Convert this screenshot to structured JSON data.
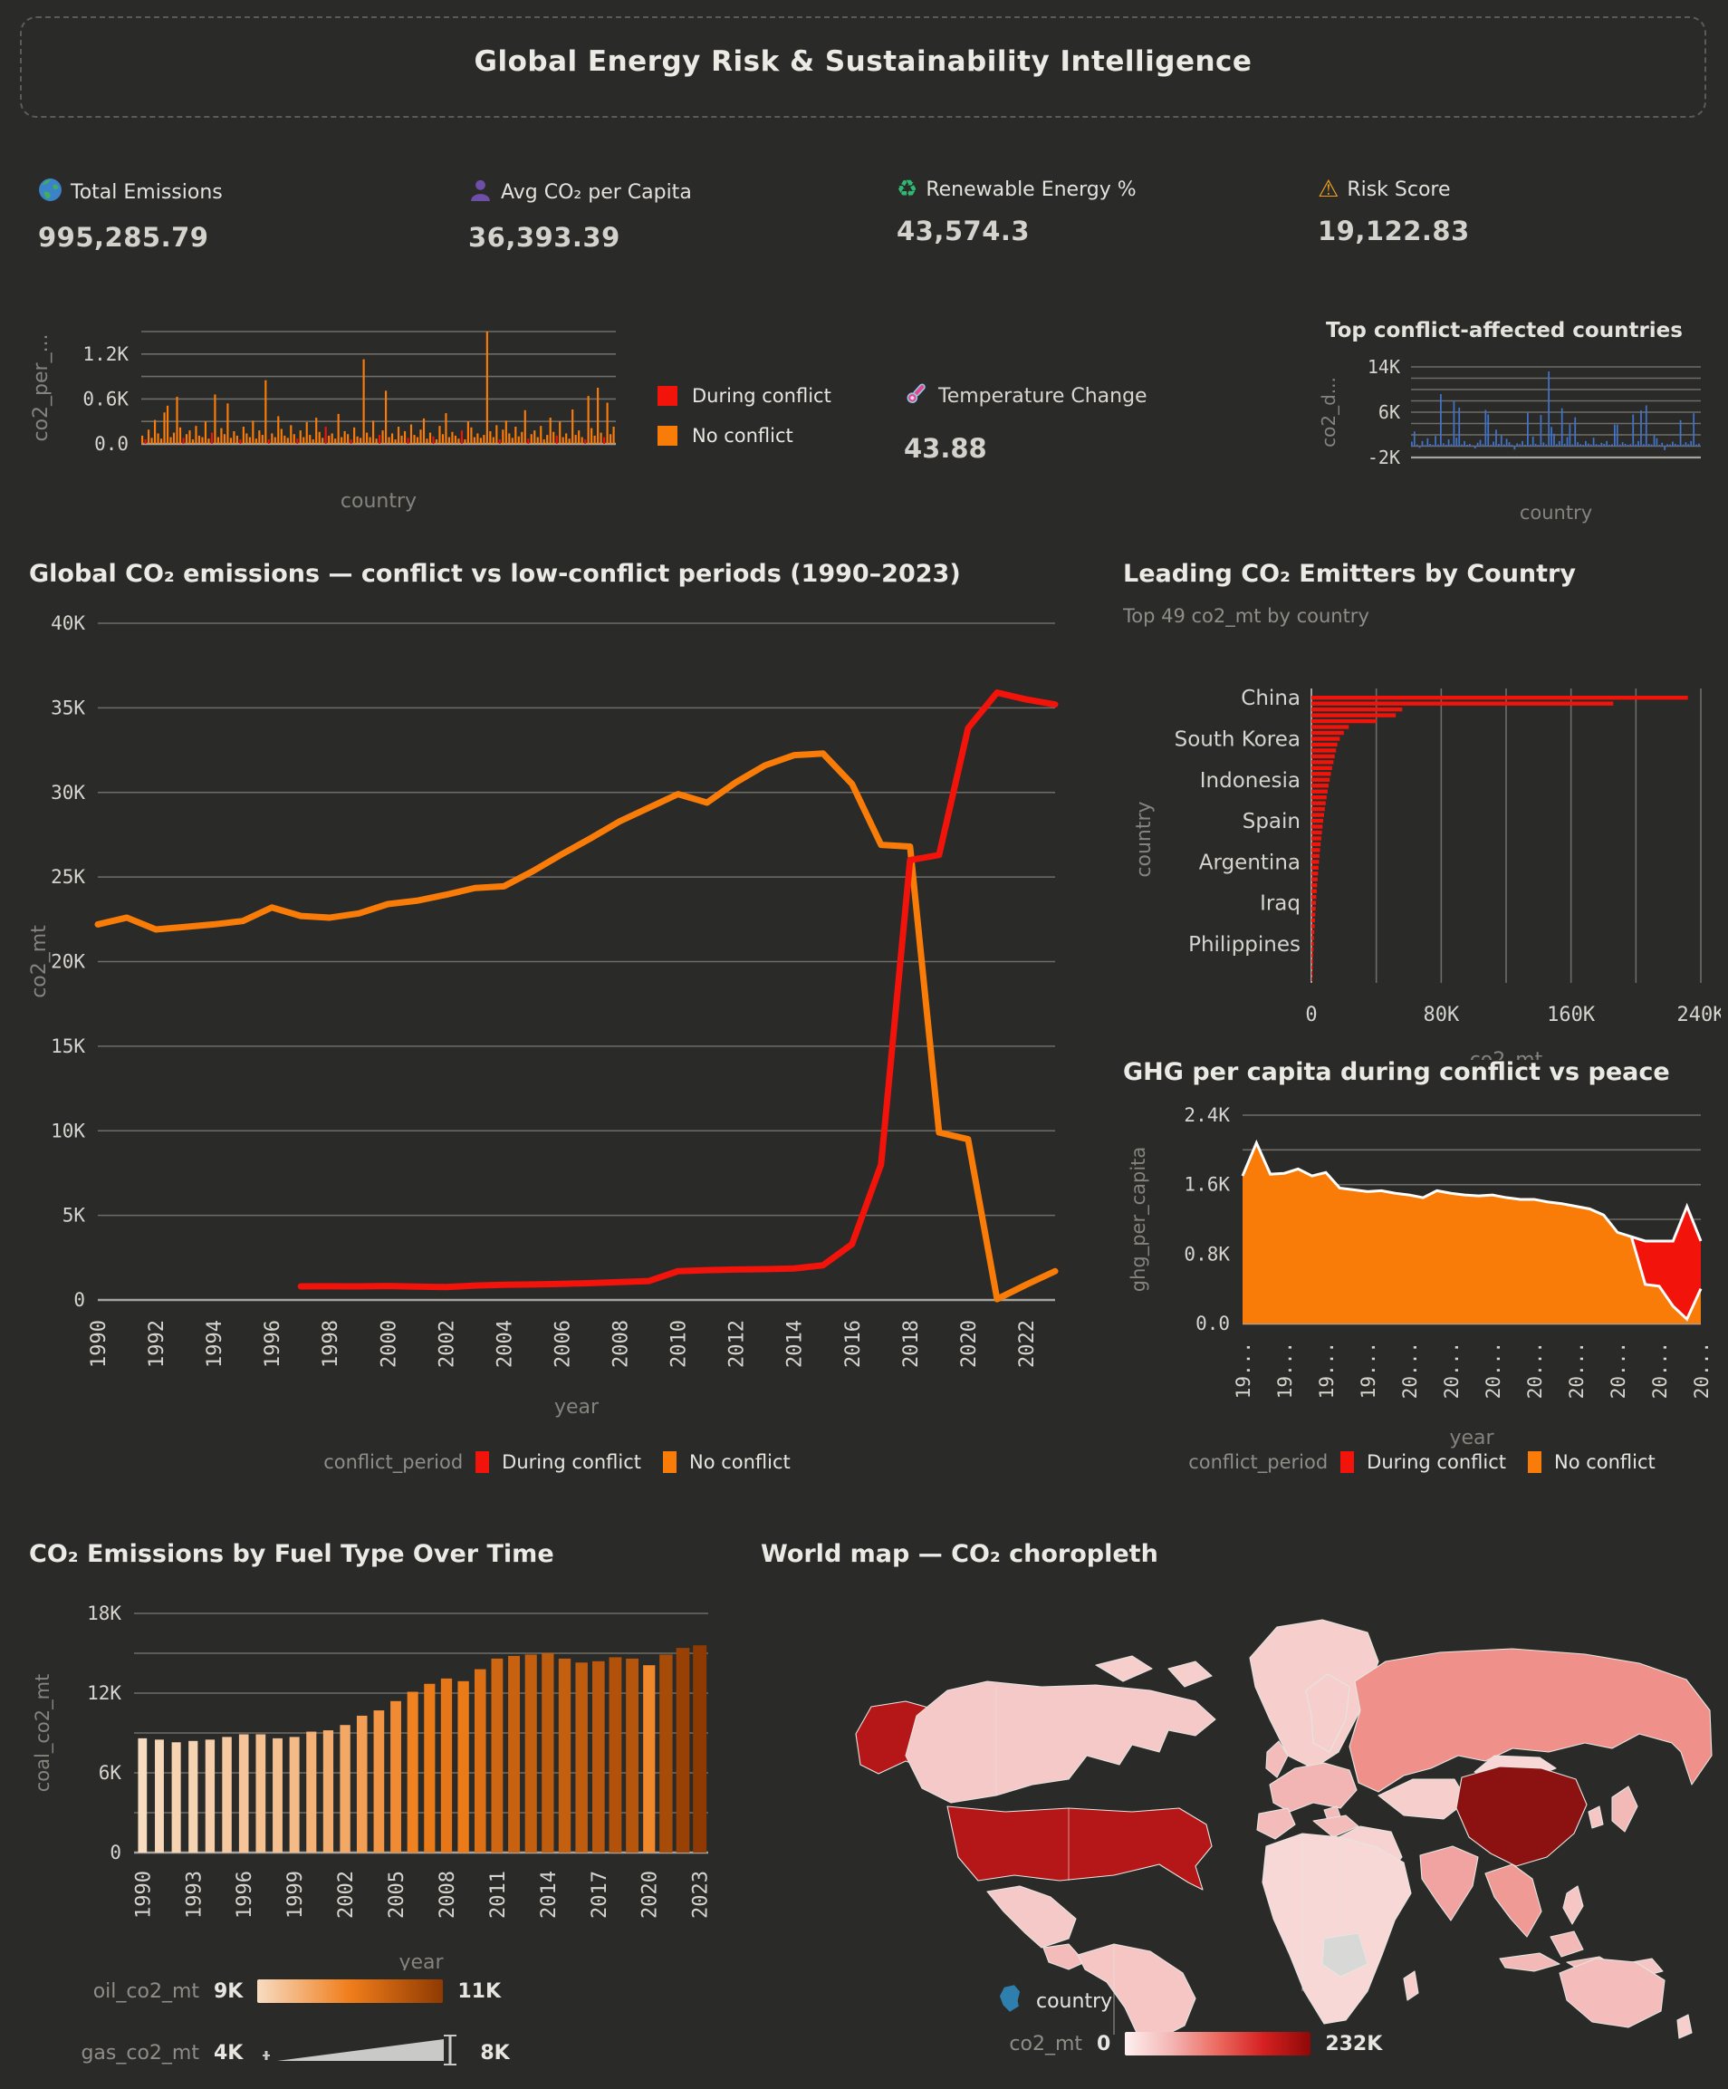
{
  "header": {
    "title": "Global Energy Risk & Sustainability Intelligence"
  },
  "kpis": [
    {
      "icon": "earth-icon",
      "label": "Total Emissions",
      "value": "995,285.79"
    },
    {
      "icon": "person-icon",
      "label": "Avg CO₂ per Capita",
      "value": "36,393.39"
    },
    {
      "icon": "recycle-icon",
      "label": "Renewable Energy %",
      "value": "43,574.3"
    },
    {
      "icon": "warning-icon",
      "label": "Risk Score",
      "value": "19,122.83"
    }
  ],
  "temperature": {
    "label": "Temperature Change",
    "value": "43.88"
  },
  "legend": {
    "series_label": "conflict_period",
    "during_label": "During conflict",
    "none_label": "No conflict",
    "during_color": "#f2130a",
    "none_color": "#f97c09"
  },
  "colors": {
    "background": "#2a2a28",
    "grid": "#6f6d67",
    "axis": "#a6a49e",
    "tick_text": "#d6d4ce",
    "axis_title": "#85837d",
    "blue_bar": "#4173c9"
  },
  "chart_data": [
    {
      "id": "country_emissions_mini",
      "type": "bar",
      "title": "",
      "xlabel": "country",
      "ylabel": "co2_per_...",
      "ylim": [
        0,
        1500
      ],
      "grid_step": 300,
      "yticks": [
        {
          "v": 0,
          "t": "0.0"
        },
        {
          "v": 600,
          "t": "0.6K"
        },
        {
          "v": 1200,
          "t": "1.2K"
        }
      ],
      "values": [
        110,
        60,
        190,
        80,
        320,
        140,
        70,
        420,
        510,
        90,
        150,
        630,
        220,
        80,
        130,
        180,
        60,
        240,
        110,
        90,
        300,
        70,
        150,
        660,
        90,
        210,
        130,
        540,
        80,
        170,
        110,
        60,
        230,
        140,
        90,
        310,
        70,
        180,
        120,
        850,
        60,
        140,
        90,
        370,
        200,
        110,
        80,
        250,
        130,
        70,
        180,
        90,
        290,
        120,
        60,
        350,
        160,
        80,
        230,
        110,
        140,
        70,
        400,
        90,
        170,
        130,
        60,
        220,
        100,
        80,
        1130,
        150,
        90,
        310,
        70,
        120,
        180,
        710,
        90,
        140,
        60,
        230,
        110,
        170,
        80,
        260,
        120,
        90,
        190,
        340,
        70,
        150,
        100,
        60,
        240,
        130,
        410,
        90,
        160,
        110,
        70,
        180,
        60,
        300,
        220,
        90,
        140,
        80,
        120,
        1500,
        170,
        90,
        250,
        60,
        190,
        310,
        140,
        80,
        230,
        100,
        160,
        450,
        70,
        130,
        180,
        90,
        240,
        60,
        120,
        350,
        160,
        110,
        300,
        90,
        140,
        70,
        460,
        120,
        180,
        90,
        60,
        640,
        210,
        110,
        750,
        150,
        90,
        550,
        130,
        230
      ],
      "red_indices": [
        1,
        13,
        22,
        31,
        40,
        49,
        58,
        66,
        75,
        84,
        92,
        101,
        113,
        122,
        131,
        140,
        146
      ]
    },
    {
      "id": "conflict_countries_mini",
      "type": "bar",
      "title": "Top conflict-affected countries",
      "xlabel": "country",
      "ylabel": "co2_d...",
      "ylim": [
        -2000,
        14000
      ],
      "grid_step": 2000,
      "yticks": [
        {
          "v": -2000,
          "t": "-2K"
        },
        {
          "v": 6000,
          "t": "6K"
        },
        {
          "v": 14000,
          "t": "14K"
        }
      ],
      "values": [
        800,
        2600,
        300,
        -300,
        900,
        200,
        1400,
        400,
        250,
        1800,
        300,
        9200,
        500,
        250,
        1200,
        350,
        7900,
        1500,
        6800,
        300,
        900,
        250,
        400,
        150,
        -400,
        600,
        1100,
        350,
        6400,
        5600,
        250,
        800,
        2900,
        400,
        1900,
        300,
        1300,
        700,
        250,
        -600,
        500,
        350,
        900,
        250,
        5900,
        300,
        1700,
        400,
        250,
        5500,
        650,
        300,
        13200,
        3400,
        2200,
        350,
        900,
        6700,
        400,
        1600,
        3900,
        300,
        5100,
        700,
        350,
        250,
        900,
        450,
        300,
        1500,
        350,
        250,
        600,
        400,
        900,
        250,
        350,
        3800,
        3800,
        300,
        700,
        400,
        250,
        350,
        5600,
        300,
        900,
        6300,
        350,
        7200,
        400,
        300,
        1900,
        1400,
        250,
        600,
        -700,
        350,
        300,
        800,
        400,
        250,
        4600,
        300,
        700,
        350,
        900,
        5800,
        300,
        450
      ]
    },
    {
      "id": "conflict_timeline",
      "type": "line",
      "title": "Global CO₂ emissions — conflict vs low-conflict periods (1990–2023)",
      "xlabel": "year",
      "ylabel": "co2_mt",
      "ylim": [
        0,
        40000
      ],
      "grid_step": 5000,
      "yticks": [
        {
          "v": 0,
          "t": "0"
        },
        {
          "v": 5000,
          "t": "5K"
        },
        {
          "v": 10000,
          "t": "10K"
        },
        {
          "v": 15000,
          "t": "15K"
        },
        {
          "v": 20000,
          "t": "20K"
        },
        {
          "v": 25000,
          "t": "25K"
        },
        {
          "v": 30000,
          "t": "30K"
        },
        {
          "v": 35000,
          "t": "35K"
        },
        {
          "v": 40000,
          "t": "40K"
        }
      ],
      "x_start": 1990,
      "x_end": 2023,
      "xtick_years": [
        1990,
        1992,
        1994,
        1996,
        1998,
        2000,
        2002,
        2004,
        2006,
        2008,
        2010,
        2012,
        2014,
        2016,
        2018,
        2020,
        2022
      ],
      "series": [
        {
          "name": "No conflict",
          "start_year": 1990,
          "values": [
            22200,
            22600,
            21900,
            22050,
            22200,
            22400,
            23200,
            22700,
            22600,
            22850,
            23400,
            23600,
            23950,
            24350,
            24450,
            25350,
            26350,
            27300,
            28300,
            29100,
            29900,
            29400,
            30600,
            31600,
            32200,
            32300,
            30500,
            26900,
            26800,
            9900,
            9500,
            50,
            900,
            1700
          ]
        },
        {
          "name": "During conflict",
          "start_year": 1997,
          "values": [
            800,
            810,
            800,
            820,
            790,
            760,
            850,
            900,
            920,
            950,
            1000,
            1060,
            1120,
            1700,
            1760,
            1800,
            1820,
            1860,
            2050,
            3300,
            8000,
            26000,
            26300,
            33800,
            35900,
            35500,
            35200
          ]
        }
      ]
    },
    {
      "id": "leading_emitters",
      "type": "bar",
      "title": "Leading CO₂ Emitters by Country",
      "subtitle": "Top 49 co2_mt by country",
      "xlabel": "co2_mt",
      "ylabel": "country",
      "xlim": [
        0,
        240000
      ],
      "grid_step": 40000,
      "xticks": [
        {
          "v": 0,
          "t": "0"
        },
        {
          "v": 80000,
          "t": "80K"
        },
        {
          "v": 160000,
          "t": "160K"
        },
        {
          "v": 240000,
          "t": "240K"
        }
      ],
      "bar_labels": [
        {
          "i": 0,
          "t": "China"
        },
        {
          "i": 7,
          "t": "South Korea"
        },
        {
          "i": 14,
          "t": "Indonesia"
        },
        {
          "i": 21,
          "t": "Spain"
        },
        {
          "i": 28,
          "t": "Argentina"
        },
        {
          "i": 35,
          "t": "Iraq"
        },
        {
          "i": 42,
          "t": "Philippines"
        }
      ],
      "values": [
        232000,
        186000,
        56000,
        52000,
        40000,
        23000,
        20000,
        17500,
        16000,
        15200,
        14400,
        13600,
        12800,
        12000,
        11300,
        10600,
        10000,
        9400,
        8800,
        8300,
        7800,
        7300,
        6900,
        6500,
        6100,
        5700,
        5300,
        5000,
        4700,
        4400,
        4100,
        3800,
        3500,
        3300,
        3000,
        2800,
        2600,
        2400,
        2200,
        2000,
        1800,
        1600,
        1450,
        1300,
        1150,
        1000,
        850,
        700,
        550
      ]
    },
    {
      "id": "ghg_capita",
      "type": "area",
      "title": "GHG per capita during conflict vs peace",
      "xlabel": "year",
      "ylabel": "ghg_per_capita",
      "ylim": [
        0,
        2400
      ],
      "grid_step": 400,
      "yticks": [
        {
          "v": 0,
          "t": "0.0"
        },
        {
          "v": 800,
          "t": "0.8K"
        },
        {
          "v": 1600,
          "t": "1.6K"
        },
        {
          "v": 2400,
          "t": "2.4K"
        }
      ],
      "x_start": 1990,
      "x_end": 2023,
      "xtick_labels": [
        "19...",
        "19...",
        "19...",
        "19...",
        "20...",
        "20...",
        "20...",
        "20...",
        "20...",
        "20...",
        "20...",
        "20..."
      ],
      "series": [
        {
          "name": "No conflict",
          "values": [
            1700,
            2080,
            1720,
            1730,
            1780,
            1700,
            1740,
            1560,
            1540,
            1520,
            1530,
            1500,
            1480,
            1450,
            1530,
            1500,
            1480,
            1470,
            1480,
            1450,
            1430,
            1430,
            1400,
            1380,
            1350,
            1320,
            1250,
            1050,
            1000,
            450,
            430,
            200,
            50,
            400
          ]
        },
        {
          "name": "During conflict",
          "values": [
            0,
            0,
            0,
            0,
            0,
            0,
            0,
            0,
            0,
            0,
            0,
            0,
            0,
            0,
            0,
            0,
            0,
            0,
            0,
            0,
            0,
            0,
            0,
            0,
            0,
            0,
            0,
            0,
            0,
            500,
            520,
            750,
            1300,
            550
          ]
        }
      ]
    },
    {
      "id": "fuel_type",
      "type": "bar",
      "title": "CO₂ Emissions by Fuel Type Over Time",
      "xlabel": "year",
      "ylabel": "coal_co2_mt",
      "ylim": [
        0,
        18000
      ],
      "grid_step": 3000,
      "yticks": [
        {
          "v": 0,
          "t": "0"
        },
        {
          "v": 6000,
          "t": "6K"
        },
        {
          "v": 12000,
          "t": "12K"
        },
        {
          "v": 18000,
          "t": "18K"
        }
      ],
      "years": [
        1990,
        1991,
        1992,
        1993,
        1994,
        1995,
        1996,
        1997,
        1998,
        1999,
        2000,
        2001,
        2002,
        2003,
        2004,
        2005,
        2006,
        2007,
        2008,
        2009,
        2010,
        2011,
        2012,
        2013,
        2014,
        2015,
        2016,
        2017,
        2018,
        2019,
        2020,
        2021,
        2022,
        2023
      ],
      "xtick_every": 3,
      "coal": [
        8600,
        8500,
        8300,
        8400,
        8500,
        8700,
        8900,
        8900,
        8600,
        8700,
        9100,
        9200,
        9600,
        10300,
        10700,
        11400,
        12100,
        12700,
        13100,
        12900,
        13800,
        14600,
        14800,
        14900,
        15000,
        14600,
        14300,
        14400,
        14700,
        14600,
        14100,
        14900,
        15400,
        15600
      ],
      "oil": [
        9000,
        9050,
        9100,
        9100,
        9150,
        9200,
        9250,
        9300,
        9300,
        9350,
        9450,
        9500,
        9550,
        9650,
        9750,
        9850,
        9950,
        10050,
        10100,
        10050,
        10200,
        10350,
        10400,
        10450,
        10500,
        10450,
        10500,
        10550,
        10650,
        10600,
        9900,
        10750,
        10900,
        11000
      ],
      "gas": [
        4500,
        4600,
        4700,
        4800,
        4900,
        5000,
        5080,
        5160,
        5240,
        5320,
        5400,
        5500,
        5600,
        5700,
        5800,
        5900,
        6000,
        6100,
        6200,
        6250,
        6400,
        6550,
        6650,
        6750,
        6850,
        6900,
        7000,
        7100,
        7200,
        7250,
        6800,
        7600,
        7800,
        8000
      ],
      "legend": {
        "oil_label": "oil_co2_mt",
        "oil_min": "9K",
        "oil_max": "11K",
        "oil_gradient": [
          "#f7dcc2",
          "#f07d1a",
          "#8f3a02"
        ],
        "gas_label": "gas_co2_mt",
        "gas_min": "4K",
        "gas_max": "8K",
        "gas_color": "#c9c9c7"
      }
    },
    {
      "id": "world_map",
      "type": "choropleth",
      "title": "World map — CO₂ choropleth",
      "legend": {
        "shape_label": "country",
        "shape_color": "#2e7fae",
        "measure_label": "co2_mt",
        "min": "0",
        "max": "232K",
        "gradient": [
          "#fdf0f0",
          "#f4b6b4",
          "#ec6a60",
          "#d42020",
          "#8f0808"
        ]
      },
      "regions": [
        {
          "id": "greenland",
          "color": "#f6cfcd"
        },
        {
          "id": "can_isles",
          "color": "#f6cfcd"
        },
        {
          "id": "alaska",
          "color": "#b51617"
        },
        {
          "id": "canada",
          "color": "#f5c9c7"
        },
        {
          "id": "usa",
          "color": "#b51617"
        },
        {
          "id": "mexico",
          "color": "#f5c9c7"
        },
        {
          "id": "camerica",
          "color": "#f3bcba"
        },
        {
          "id": "southamerica",
          "color": "#f5c6c4"
        },
        {
          "id": "iceland",
          "color": "#f6cfcd"
        },
        {
          "id": "uk",
          "color": "#f3bcba"
        },
        {
          "id": "scandinavia",
          "color": "#f6cfcd"
        },
        {
          "id": "europe",
          "color": "#f2b5b3"
        },
        {
          "id": "iberia",
          "color": "#f3bcba"
        },
        {
          "id": "italy",
          "color": "#f3bcba"
        },
        {
          "id": "russia",
          "color": "#f0908a"
        },
        {
          "id": "kazakh",
          "color": "#f6cfcd"
        },
        {
          "id": "turkey",
          "color": "#f3bcba"
        },
        {
          "id": "mideast",
          "color": "#f6d2d0"
        },
        {
          "id": "africa",
          "color": "#f8d8d6"
        },
        {
          "id": "drc",
          "color": "#d8d8d6"
        },
        {
          "id": "india",
          "color": "#f0a3a0"
        },
        {
          "id": "mongolia",
          "color": "#f8d8d6"
        },
        {
          "id": "china",
          "color": "#8c1212"
        },
        {
          "id": "seasia",
          "color": "#ef9a94"
        },
        {
          "id": "indonesia1",
          "color": "#f3b9b7"
        },
        {
          "id": "indonesia2",
          "color": "#f3b9b7"
        },
        {
          "id": "borneo",
          "color": "#f3b9b7"
        },
        {
          "id": "png",
          "color": "#f5c6c4"
        },
        {
          "id": "philippines",
          "color": "#f5c6c4"
        },
        {
          "id": "japan",
          "color": "#f3b9b7"
        },
        {
          "id": "korea",
          "color": "#f5c6c4"
        },
        {
          "id": "australia",
          "color": "#f4bdbb"
        },
        {
          "id": "nz",
          "color": "#f6cfcd"
        },
        {
          "id": "madagascar",
          "color": "#f6cfcd"
        }
      ]
    }
  ]
}
